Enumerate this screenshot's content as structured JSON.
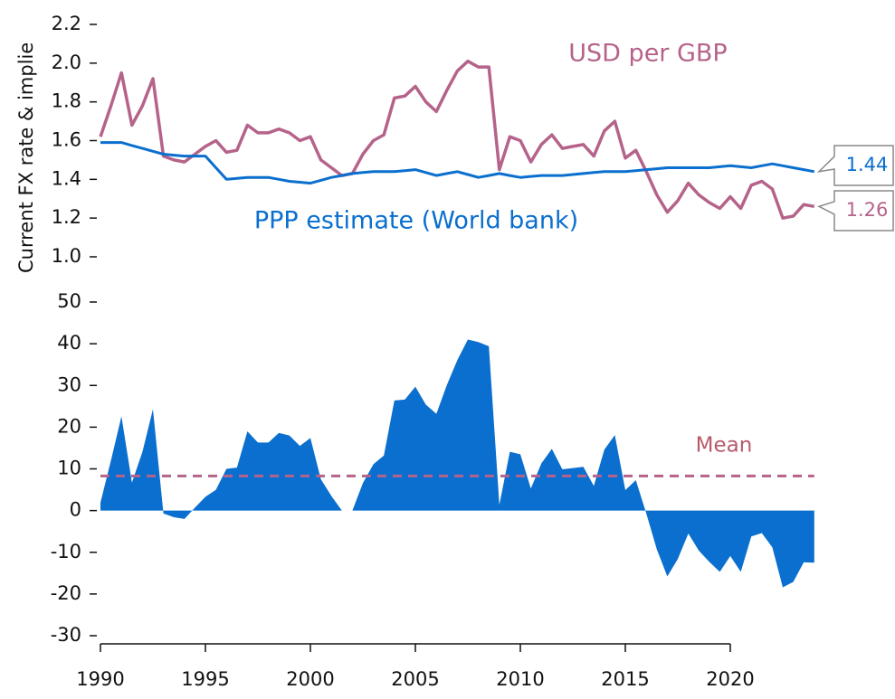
{
  "chart_data": [
    {
      "type": "line",
      "y_label": "Current FX rate & implie",
      "ylim": [
        1.0,
        2.2
      ],
      "yticks": [
        {
          "value": 1,
          "label": "1.0"
        },
        1.2,
        1.4,
        1.6,
        1.8,
        {
          "value": 2,
          "label": "2.0"
        },
        2.2
      ],
      "xlim": [
        1990,
        2025
      ],
      "x": [
        1990,
        1990.5,
        1991,
        1991.5,
        1992,
        1992.5,
        1993,
        1993.5,
        1994,
        1994.5,
        1995,
        1995.5,
        1996,
        1996.5,
        1997,
        1997.5,
        1998,
        1998.5,
        1999,
        1999.5,
        2000,
        2000.5,
        2001,
        2001.5,
        2002,
        2002.5,
        2003,
        2003.5,
        2004,
        2004.5,
        2005,
        2005.5,
        2006,
        2006.5,
        2007,
        2007.5,
        2008,
        2008.5,
        2009,
        2009.5,
        2010,
        2010.5,
        2011,
        2011.5,
        2012,
        2012.5,
        2013,
        2013.5,
        2014,
        2014.5,
        2015,
        2015.5,
        2016,
        2016.5,
        2017,
        2017.5,
        2018,
        2018.5,
        2019,
        2019.5,
        2020,
        2020.5,
        2021,
        2021.5,
        2022,
        2022.5,
        2023,
        2023.5,
        2024
      ],
      "series": [
        {
          "name": "USD per GBP",
          "color": "#b5638a",
          "values": [
            1.62,
            1.78,
            1.95,
            1.68,
            1.78,
            1.92,
            1.52,
            1.5,
            1.49,
            1.53,
            1.57,
            1.6,
            1.54,
            1.55,
            1.68,
            1.64,
            1.64,
            1.66,
            1.64,
            1.6,
            1.62,
            1.5,
            1.46,
            1.42,
            1.43,
            1.53,
            1.6,
            1.63,
            1.82,
            1.83,
            1.88,
            1.8,
            1.75,
            1.86,
            1.96,
            2.01,
            1.98,
            1.98,
            1.45,
            1.62,
            1.6,
            1.49,
            1.58,
            1.63,
            1.56,
            1.57,
            1.58,
            1.52,
            1.65,
            1.7,
            1.51,
            1.55,
            1.44,
            1.32,
            1.23,
            1.29,
            1.38,
            1.32,
            1.28,
            1.25,
            1.31,
            1.25,
            1.37,
            1.39,
            1.35,
            1.2,
            1.21,
            1.27,
            1.26
          ]
        },
        {
          "name": "PPP estimate (World bank)",
          "color": "#0a6fce",
          "values": [
            1.59,
            1.59,
            1.59,
            1.575,
            1.56,
            1.545,
            1.53,
            1.525,
            1.52,
            1.52,
            1.52,
            1.46,
            1.4,
            1.405,
            1.41,
            1.41,
            1.41,
            1.4,
            1.39,
            1.385,
            1.38,
            1.395,
            1.41,
            1.42,
            1.43,
            1.435,
            1.44,
            1.44,
            1.44,
            1.445,
            1.45,
            1.435,
            1.42,
            1.43,
            1.44,
            1.425,
            1.41,
            1.42,
            1.43,
            1.42,
            1.41,
            1.415,
            1.42,
            1.42,
            1.42,
            1.425,
            1.43,
            1.435,
            1.44,
            1.44,
            1.44,
            1.445,
            1.45,
            1.455,
            1.46,
            1.46,
            1.46,
            1.46,
            1.46,
            1.465,
            1.47,
            1.465,
            1.46,
            1.47,
            1.48,
            1.47,
            1.46,
            1.45,
            1.44
          ]
        }
      ]
    },
    {
      "type": "area",
      "color": "#0a6fce",
      "ylim": [
        -30,
        50
      ],
      "yticks": [
        -30,
        -20,
        -10,
        0,
        10,
        20,
        30,
        40,
        50
      ],
      "xlim": [
        1990,
        2025
      ],
      "xticks": [
        1990,
        1995,
        2000,
        2005,
        2010,
        2015,
        2020
      ],
      "x": [
        1990,
        1990.5,
        1991,
        1991.5,
        1992,
        1992.5,
        1993,
        1993.5,
        1994,
        1994.5,
        1995,
        1995.5,
        1996,
        1996.5,
        1997,
        1997.5,
        1998,
        1998.5,
        1999,
        1999.5,
        2000,
        2000.5,
        2001,
        2001.5,
        2002,
        2002.5,
        2003,
        2003.5,
        2004,
        2004.5,
        2005,
        2005.5,
        2006,
        2006.5,
        2007,
        2007.5,
        2008,
        2008.5,
        2009,
        2009.5,
        2010,
        2010.5,
        2011,
        2011.5,
        2012,
        2012.5,
        2013,
        2013.5,
        2014,
        2014.5,
        2015,
        2015.5,
        2016,
        2016.5,
        2017,
        2017.5,
        2018,
        2018.5,
        2019,
        2019.5,
        2020,
        2020.5,
        2021,
        2021.5,
        2022,
        2022.5,
        2023,
        2023.5,
        2024
      ],
      "values": [
        1.9,
        12,
        22.6,
        6.7,
        14.1,
        24.3,
        -0.7,
        -1.6,
        -2,
        0.7,
        3.3,
        5,
        10,
        10.3,
        19,
        16.3,
        16.3,
        18.6,
        18,
        15.5,
        17.4,
        7.5,
        3.5,
        0,
        0,
        6.6,
        11.1,
        13.2,
        26.4,
        26.6,
        29.7,
        25.4,
        23.2,
        30.1,
        36.1,
        41,
        40.4,
        39.4,
        1.4,
        14.1,
        13.5,
        5.3,
        11.3,
        14.8,
        9.9,
        10.2,
        10.5,
        5.9,
        14.6,
        18.1,
        4.9,
        7.3,
        -0.7,
        -9.3,
        -15.8,
        -11.6,
        -5.5,
        -9.6,
        -12.3,
        -14.7,
        -10.9,
        -14.7,
        -6.2,
        -5.4,
        -8.8,
        -18.4,
        -17.1,
        -12.4,
        -12.5
      ],
      "mean": {
        "label": "Mean",
        "value": 8.3,
        "color": "#b5638a"
      }
    }
  ]
}
